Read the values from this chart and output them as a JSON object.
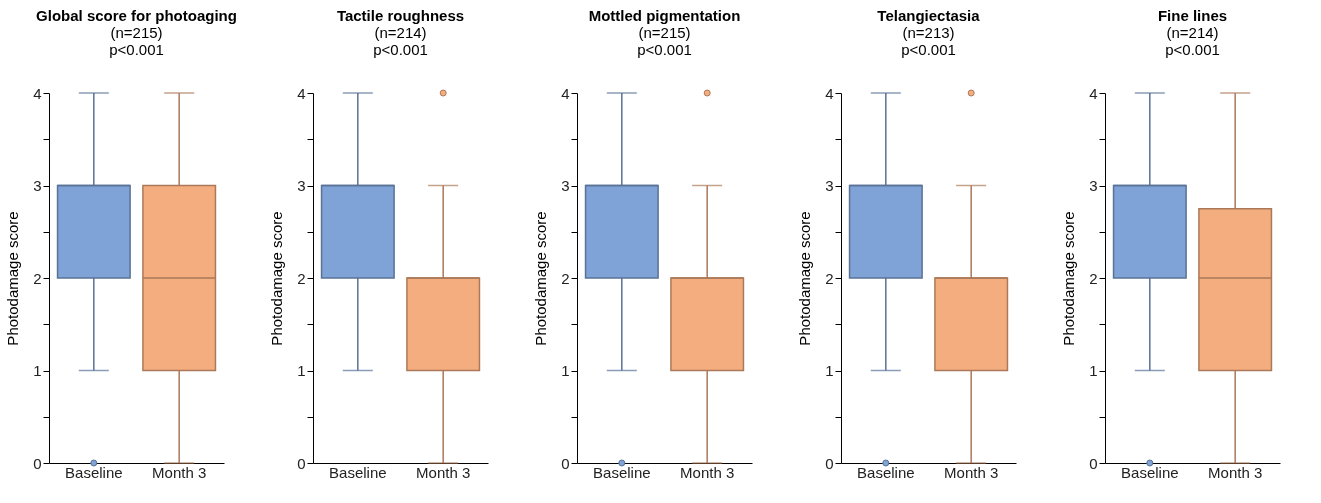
{
  "chart_data": [
    {
      "type": "box",
      "title": "Global score for photoaging",
      "subtitle": "(n=215)",
      "annotations": [
        "p<0.001"
      ],
      "ylabel": "Photodamage score",
      "categories": [
        "Baseline",
        "Month 3"
      ],
      "colors": [
        "#7fa3d6",
        "#f4ad7f"
      ],
      "ylim": [
        0,
        4
      ],
      "yticks": [
        0,
        {
          "value": 0.5,
          "label": null
        },
        1,
        {
          "value": 1.5,
          "label": null
        },
        2,
        {
          "value": 2.5,
          "label": null
        },
        3,
        {
          "value": 3.5,
          "label": null
        },
        4
      ],
      "grid": false,
      "boxes": [
        {
          "low": 1,
          "q1": 2,
          "median": 3,
          "q3": 3,
          "high": 4,
          "outliers": [
            0
          ]
        },
        {
          "low": 0,
          "q1": 1,
          "median": 2,
          "q3": 3,
          "high": 4
        }
      ]
    },
    {
      "type": "box",
      "title": "Tactile roughness",
      "subtitle": "(n=214)",
      "annotations": [
        "p<0.001"
      ],
      "ylabel": "Photodamage score",
      "categories": [
        "Baseline",
        "Month 3"
      ],
      "colors": [
        "#7fa3d6",
        "#f4ad7f"
      ],
      "ylim": [
        0,
        4
      ],
      "yticks": [
        0,
        {
          "value": 0.5,
          "label": null
        },
        1,
        {
          "value": 1.5,
          "label": null
        },
        2,
        {
          "value": 2.5,
          "label": null
        },
        3,
        {
          "value": 3.5,
          "label": null
        },
        4
      ],
      "grid": false,
      "boxes": [
        {
          "low": 1,
          "q1": 2,
          "median": 3,
          "q3": 3,
          "high": 4
        },
        {
          "low": 0,
          "q1": 1,
          "median": 2,
          "q3": 2,
          "high": 3,
          "outliers": [
            4
          ]
        }
      ]
    },
    {
      "type": "box",
      "title": "Mottled pigmentation",
      "subtitle": "(n=215)",
      "annotations": [
        "p<0.001"
      ],
      "ylabel": "Photodamage score",
      "categories": [
        "Baseline",
        "Month 3"
      ],
      "colors": [
        "#7fa3d6",
        "#f4ad7f"
      ],
      "ylim": [
        0,
        4
      ],
      "yticks": [
        0,
        {
          "value": 0.5,
          "label": null
        },
        1,
        {
          "value": 1.5,
          "label": null
        },
        2,
        {
          "value": 2.5,
          "label": null
        },
        3,
        {
          "value": 3.5,
          "label": null
        },
        4
      ],
      "grid": false,
      "boxes": [
        {
          "low": 1,
          "q1": 2,
          "median": 3,
          "q3": 3,
          "high": 4,
          "outliers": [
            0
          ]
        },
        {
          "low": 0,
          "q1": 1,
          "median": 2,
          "q3": 2,
          "high": 3,
          "outliers": [
            4
          ]
        }
      ]
    },
    {
      "type": "box",
      "title": "Telangiectasia",
      "subtitle": "(n=213)",
      "annotations": [
        "p<0.001"
      ],
      "ylabel": "Photodamage score",
      "categories": [
        "Baseline",
        "Month 3"
      ],
      "colors": [
        "#7fa3d6",
        "#f4ad7f"
      ],
      "ylim": [
        0,
        4
      ],
      "yticks": [
        0,
        {
          "value": 0.5,
          "label": null
        },
        1,
        {
          "value": 1.5,
          "label": null
        },
        2,
        {
          "value": 2.5,
          "label": null
        },
        3,
        {
          "value": 3.5,
          "label": null
        },
        4
      ],
      "grid": false,
      "boxes": [
        {
          "low": 1,
          "q1": 2,
          "median": 3,
          "q3": 3,
          "high": 4,
          "outliers": [
            0
          ]
        },
        {
          "low": 0,
          "q1": 1,
          "median": 2,
          "q3": 2,
          "high": 3,
          "outliers": [
            4
          ]
        }
      ]
    },
    {
      "type": "box",
      "title": "Fine lines",
      "subtitle": "(n=214)",
      "annotations": [
        "p<0.001"
      ],
      "ylabel": "Photodamage score",
      "categories": [
        "Baseline",
        "Month 3"
      ],
      "colors": [
        "#7fa3d6",
        "#f4ad7f"
      ],
      "ylim": [
        0,
        4
      ],
      "yticks": [
        0,
        {
          "value": 0.5,
          "label": null
        },
        1,
        {
          "value": 1.5,
          "label": null
        },
        2,
        {
          "value": 2.5,
          "label": null
        },
        3,
        {
          "value": 3.5,
          "label": null
        },
        4
      ],
      "grid": false,
      "boxes": [
        {
          "low": 1,
          "q1": 2,
          "median": 3,
          "q3": 3,
          "high": 4,
          "outliers": [
            0
          ]
        },
        {
          "low": 0,
          "q1": 1,
          "median": 2,
          "q3": 2.75,
          "high": 4
        }
      ]
    }
  ]
}
